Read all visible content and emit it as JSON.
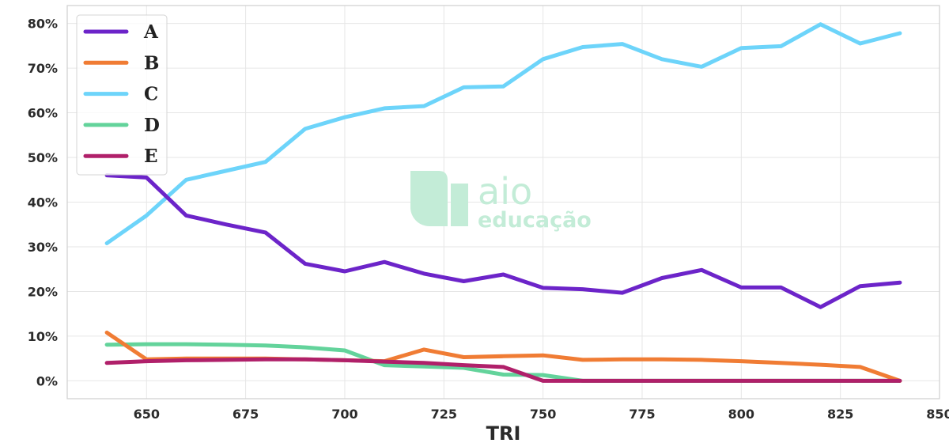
{
  "chart_data": {
    "type": "line",
    "title": "",
    "xlabel": "TRI",
    "ylabel": "",
    "xlim": [
      630,
      850
    ],
    "ylim": [
      -4,
      84
    ],
    "x_ticks": [
      650,
      675,
      700,
      725,
      750,
      775,
      800,
      825,
      850
    ],
    "y_ticks": [
      0,
      10,
      20,
      30,
      40,
      50,
      60,
      70,
      80
    ],
    "y_tick_suffix": "%",
    "grid": true,
    "legend_position": "top-left",
    "x": [
      640,
      650,
      660,
      670,
      680,
      690,
      700,
      710,
      720,
      730,
      740,
      750,
      760,
      770,
      780,
      790,
      800,
      810,
      820,
      830,
      840
    ],
    "series": [
      {
        "name": "A",
        "color": "#6c24c9",
        "values": [
          46,
          45.5,
          37,
          35,
          33.2,
          26.2,
          24.5,
          26.6,
          24,
          22.3,
          23.8,
          20.8,
          20.5,
          19.7,
          23,
          24.8,
          20.9,
          20.9,
          16.5,
          21.2,
          22
        ]
      },
      {
        "name": "B",
        "color": "#f07c34",
        "values": [
          10.8,
          4.8,
          5,
          5,
          5,
          4.8,
          4.6,
          4.4,
          7,
          5.3,
          5.5,
          5.7,
          4.7,
          4.8,
          4.8,
          4.7,
          4.4,
          4,
          3.6,
          3.1,
          0
        ]
      },
      {
        "name": "C",
        "color": "#6dd4fa",
        "values": [
          30.8,
          37,
          45,
          47,
          49,
          56.4,
          59,
          61,
          61.5,
          65.7,
          65.9,
          72,
          74.7,
          75.4,
          72,
          70.3,
          74.5,
          74.9,
          79.8,
          75.5,
          77.8
        ]
      },
      {
        "name": "D",
        "color": "#63d39b",
        "values": [
          8.1,
          8.2,
          8.2,
          8.1,
          7.9,
          7.5,
          6.8,
          3.5,
          3.2,
          2.9,
          1.4,
          1.3,
          0,
          0,
          0,
          0,
          0,
          0,
          0,
          0,
          0
        ]
      },
      {
        "name": "E",
        "color": "#b0206a",
        "values": [
          4,
          4.4,
          4.6,
          4.7,
          4.8,
          4.8,
          4.6,
          4.3,
          4,
          3.5,
          3.1,
          0,
          0,
          0,
          0,
          0,
          0,
          0,
          0,
          0,
          0
        ]
      }
    ]
  },
  "watermark": {
    "logo_name": "aio-logo-icon",
    "line1": "aio",
    "line2": "educação"
  }
}
